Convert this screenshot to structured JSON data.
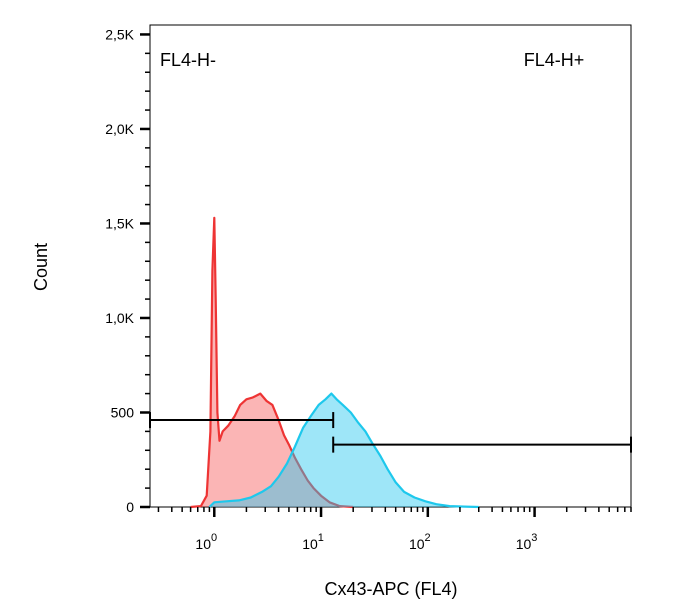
{
  "chart_data": {
    "type": "area",
    "title": "",
    "xlabel": "Cx43-APC (FL4)",
    "ylabel": "Count",
    "x_scale": "log",
    "xlim": [
      0.25,
      8000
    ],
    "ylim": [
      0,
      2550
    ],
    "grid": false,
    "y_ticks": [
      {
        "value": 0,
        "label": "0"
      },
      {
        "value": 500,
        "label": "500"
      },
      {
        "value": 1000,
        "label": "1,0K"
      },
      {
        "value": 1500,
        "label": "1,5K"
      },
      {
        "value": 2000,
        "label": "2,0K"
      },
      {
        "value": 2500,
        "label": "2,5K"
      }
    ],
    "x_ticks": [
      {
        "value": 1,
        "base": "10",
        "exp": "0"
      },
      {
        "value": 10,
        "base": "10",
        "exp": "1"
      },
      {
        "value": 100,
        "base": "10",
        "exp": "2"
      },
      {
        "value": 1000,
        "base": "10",
        "exp": "3"
      }
    ],
    "series": [
      {
        "color": "#ee3434",
        "fill": "rgba(245,70,70,0.40)",
        "points": [
          [
            0.6,
            0
          ],
          [
            0.75,
            5
          ],
          [
            0.85,
            60
          ],
          [
            0.92,
            400
          ],
          [
            0.96,
            1250
          ],
          [
            1.0,
            1530
          ],
          [
            1.03,
            1100
          ],
          [
            1.07,
            500
          ],
          [
            1.12,
            350
          ],
          [
            1.2,
            400
          ],
          [
            1.35,
            430
          ],
          [
            1.55,
            480
          ],
          [
            1.75,
            540
          ],
          [
            2.0,
            570
          ],
          [
            2.3,
            580
          ],
          [
            2.7,
            600
          ],
          [
            3.1,
            560
          ],
          [
            3.5,
            540
          ],
          [
            4.0,
            460
          ],
          [
            4.5,
            380
          ],
          [
            5.0,
            330
          ],
          [
            5.7,
            260
          ],
          [
            6.5,
            200
          ],
          [
            7.5,
            140
          ],
          [
            8.5,
            100
          ],
          [
            10,
            60
          ],
          [
            12,
            25
          ],
          [
            15,
            5
          ],
          [
            20,
            0
          ]
        ]
      },
      {
        "color": "#1ec8ec",
        "fill": "rgba(40,200,240,0.45)",
        "points": [
          [
            0.9,
            0
          ],
          [
            1.0,
            25
          ],
          [
            1.3,
            30
          ],
          [
            1.7,
            35
          ],
          [
            2.2,
            50
          ],
          [
            2.8,
            80
          ],
          [
            3.4,
            110
          ],
          [
            4.0,
            160
          ],
          [
            4.8,
            230
          ],
          [
            5.7,
            320
          ],
          [
            6.8,
            420
          ],
          [
            8.0,
            480
          ],
          [
            9.5,
            540
          ],
          [
            11,
            570
          ],
          [
            12.5,
            600
          ],
          [
            14,
            570
          ],
          [
            16,
            540
          ],
          [
            19,
            500
          ],
          [
            22,
            450
          ],
          [
            26,
            400
          ],
          [
            30,
            340
          ],
          [
            36,
            270
          ],
          [
            42,
            200
          ],
          [
            50,
            130
          ],
          [
            60,
            80
          ],
          [
            75,
            50
          ],
          [
            95,
            30
          ],
          [
            120,
            15
          ],
          [
            160,
            5
          ],
          [
            220,
            2
          ],
          [
            300,
            0
          ]
        ]
      }
    ],
    "gates": [
      {
        "label": "FL4-H-",
        "x_from": 0.25,
        "x_to": 13,
        "y": 460,
        "label_pos": "top-left"
      },
      {
        "label": "FL4-H+",
        "x_from": 13,
        "x_to": 8000,
        "y": 330,
        "label_pos": "top-right"
      }
    ]
  }
}
